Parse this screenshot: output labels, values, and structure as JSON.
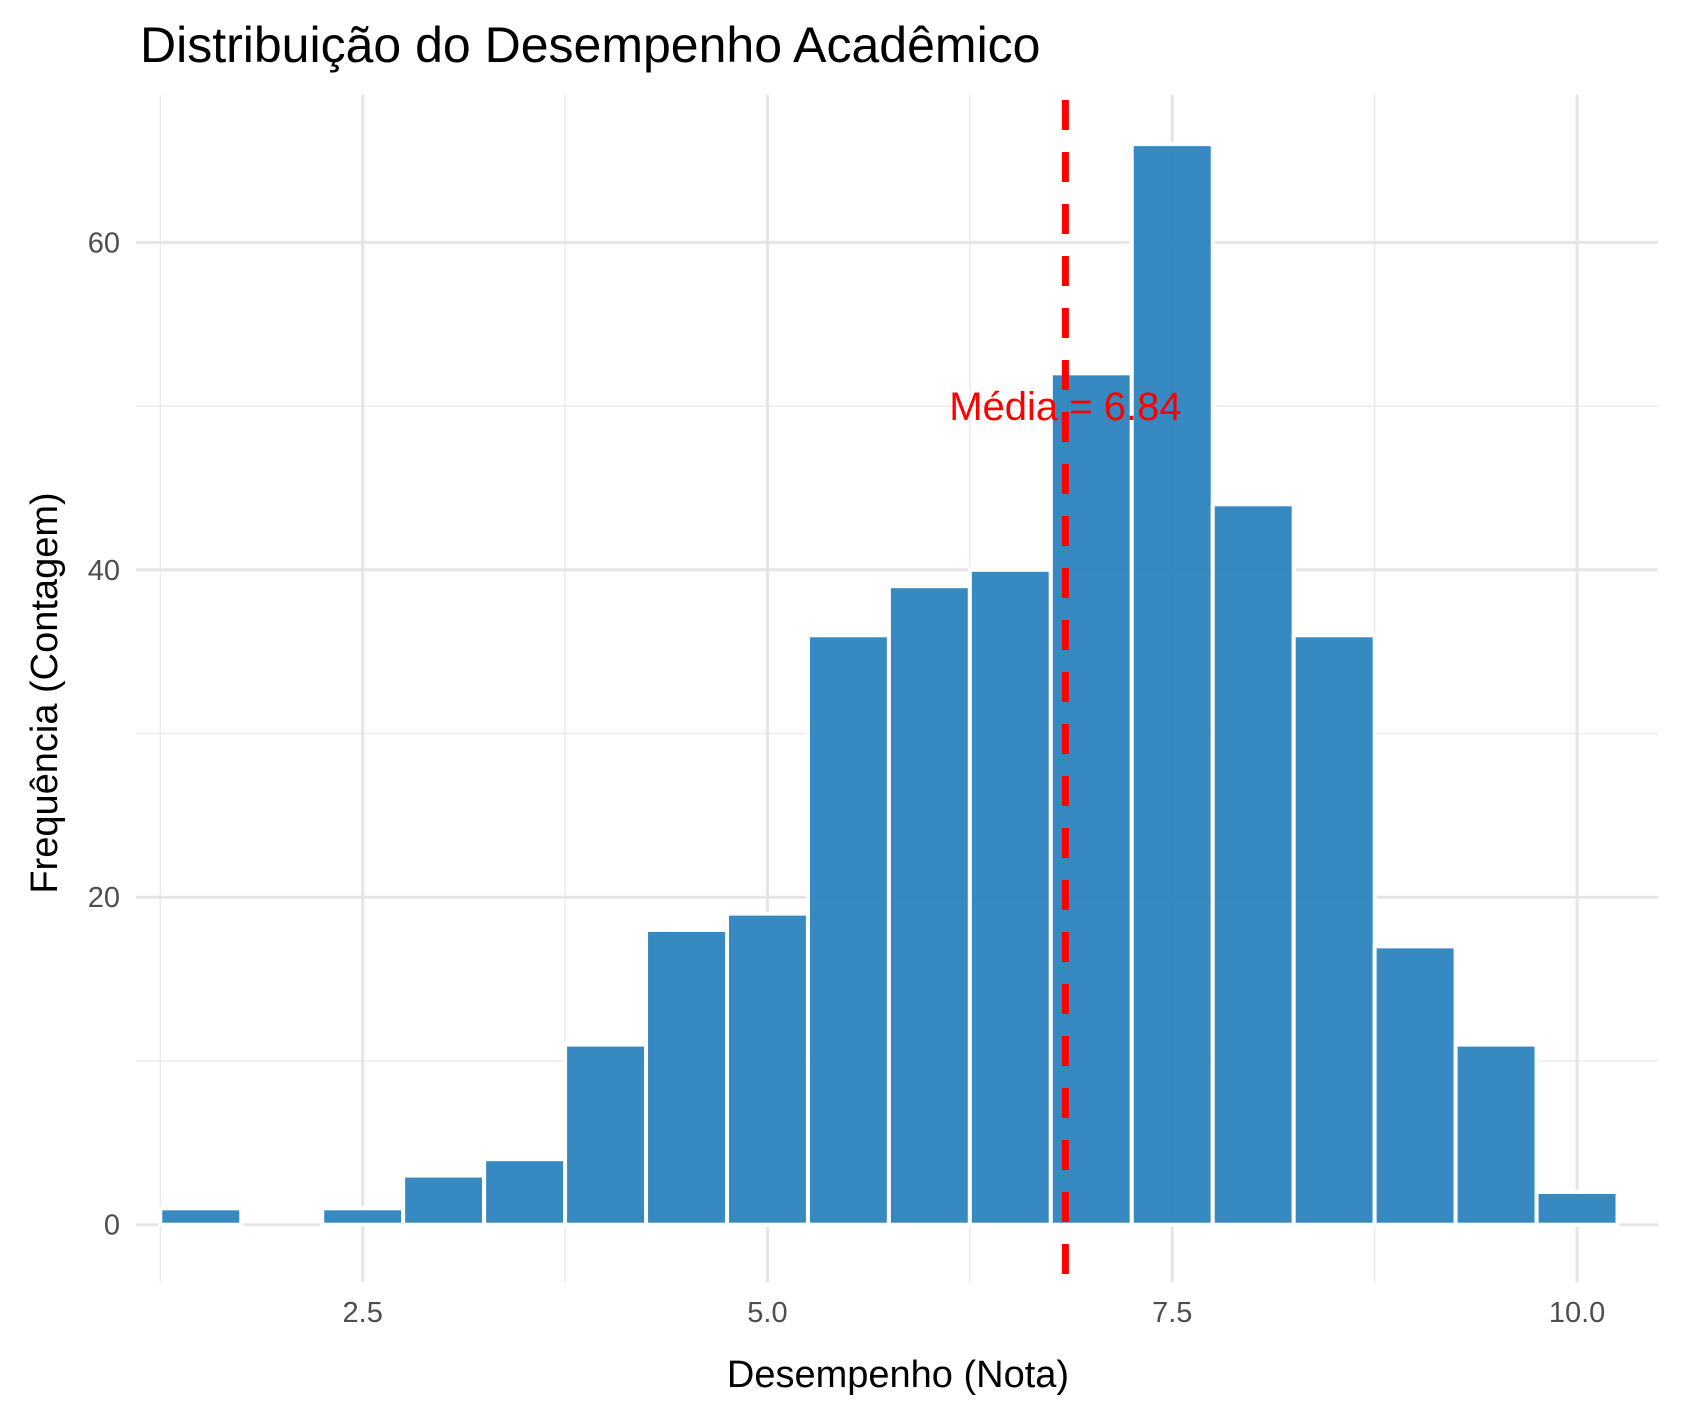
{
  "chart_data": {
    "type": "bar",
    "title": "Distribuição do Desempenho Acadêmico",
    "xlabel": "Desempenho (Nota)",
    "ylabel": "Frequência (Contagem)",
    "xlim": [
      1.1,
      10.5
    ],
    "ylim": [
      -3.5,
      69
    ],
    "x_ticks": [
      {
        "value": 2.5,
        "label": "2.5"
      },
      {
        "value": 5.0,
        "label": "5.0"
      },
      {
        "value": 7.5,
        "label": "7.5"
      },
      {
        "value": 10.0,
        "label": "10.0"
      }
    ],
    "y_ticks": [
      {
        "value": 0,
        "label": "0"
      },
      {
        "value": 20,
        "label": "20"
      },
      {
        "value": 40,
        "label": "40"
      },
      {
        "value": 60,
        "label": "60"
      }
    ],
    "x_minor_gridlines": [
      1.25,
      3.75,
      6.25,
      8.75
    ],
    "y_minor_gridlines": [
      10,
      30,
      50
    ],
    "grid": true,
    "bin_width": 0.5,
    "bins": [
      {
        "start": 1.25,
        "end": 1.75,
        "count": 1
      },
      {
        "start": 1.75,
        "end": 2.25,
        "count": 0
      },
      {
        "start": 2.25,
        "end": 2.75,
        "count": 1
      },
      {
        "start": 2.75,
        "end": 3.25,
        "count": 3
      },
      {
        "start": 3.25,
        "end": 3.75,
        "count": 4
      },
      {
        "start": 3.75,
        "end": 4.25,
        "count": 11
      },
      {
        "start": 4.25,
        "end": 4.75,
        "count": 18
      },
      {
        "start": 4.75,
        "end": 5.25,
        "count": 19
      },
      {
        "start": 5.25,
        "end": 5.75,
        "count": 36
      },
      {
        "start": 5.75,
        "end": 6.25,
        "count": 39
      },
      {
        "start": 6.25,
        "end": 6.75,
        "count": 40
      },
      {
        "start": 6.75,
        "end": 7.25,
        "count": 52
      },
      {
        "start": 7.25,
        "end": 7.75,
        "count": 66
      },
      {
        "start": 7.75,
        "end": 8.25,
        "count": 44
      },
      {
        "start": 8.25,
        "end": 8.75,
        "count": 36
      },
      {
        "start": 8.75,
        "end": 9.25,
        "count": 17
      },
      {
        "start": 9.25,
        "end": 9.75,
        "count": 11
      },
      {
        "start": 9.75,
        "end": 10.25,
        "count": 2
      }
    ],
    "bar_color": "#2b83be",
    "mean_line": {
      "value": 6.84,
      "color": "#ff0000",
      "style": "dashed"
    },
    "annotation": {
      "text": "Média = 6.84",
      "x": 6.84,
      "y": 50,
      "color": "#ff0000"
    }
  }
}
